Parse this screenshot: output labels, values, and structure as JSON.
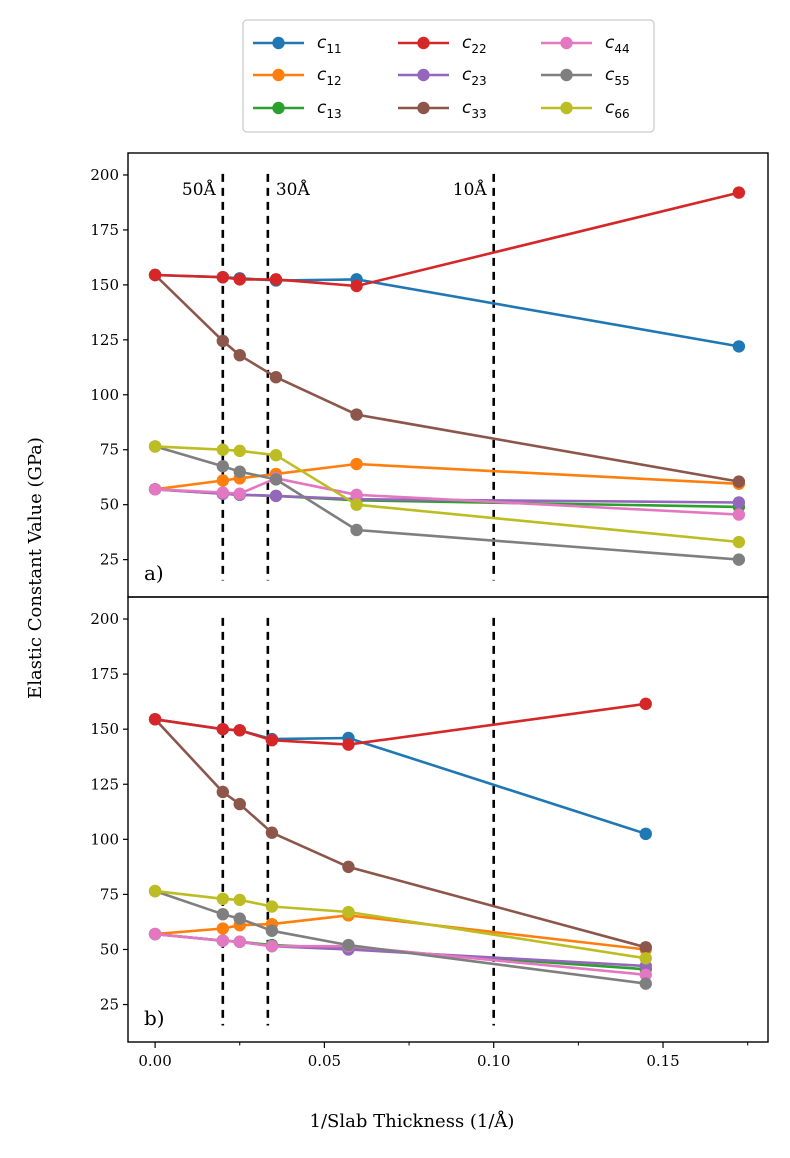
{
  "chart_data": {
    "type": "line",
    "xlabel": "1/Slab Thickness (1/Å)",
    "ylabel": "Elastic Constant Value (GPa)",
    "xlim": [
      -0.008,
      0.181
    ],
    "ylim": [
      8,
      210
    ],
    "xticks": [
      0.0,
      0.05,
      0.1,
      0.15
    ],
    "xtick_labels": [
      "0.00",
      "0.05",
      "0.10",
      "0.15"
    ],
    "yticks": [
      25,
      50,
      75,
      100,
      125,
      150,
      175,
      200
    ],
    "ytick_labels": [
      "25",
      "50",
      "75",
      "100",
      "125",
      "150",
      "175",
      "200"
    ],
    "legend": {
      "placement": "top-center",
      "entries": [
        {
          "id": "c11",
          "base": "c",
          "sub": "11",
          "color": "#1f77b4"
        },
        {
          "id": "c12",
          "base": "c",
          "sub": "12",
          "color": "#ff7f0e"
        },
        {
          "id": "c13",
          "base": "c",
          "sub": "13",
          "color": "#2ca02c"
        },
        {
          "id": "c22",
          "base": "c",
          "sub": "22",
          "color": "#d62728"
        },
        {
          "id": "c23",
          "base": "c",
          "sub": "23",
          "color": "#9467bd"
        },
        {
          "id": "c33",
          "base": "c",
          "sub": "33",
          "color": "#8c564b"
        },
        {
          "id": "c44",
          "base": "c",
          "sub": "44",
          "color": "#e377c2"
        },
        {
          "id": "c55",
          "base": "c",
          "sub": "55",
          "color": "#7f7f7f"
        },
        {
          "id": "c66",
          "base": "c",
          "sub": "66",
          "color": "#bcbd22"
        }
      ]
    },
    "panels": [
      {
        "label": "a)",
        "vlines": [
          {
            "x": 0.02,
            "label": "50Å"
          },
          {
            "x": 0.0333,
            "label": "30Å"
          },
          {
            "x": 0.1,
            "label": "10Å"
          }
        ],
        "series": [
          {
            "id": "c11",
            "x": [
              0,
              0.02,
              0.025,
              0.0357,
              0.0595,
              0.1724
            ],
            "y": [
              154.5,
              153.5,
              153,
              152,
              152.5,
              122
            ]
          },
          {
            "id": "c22",
            "x": [
              0,
              0.02,
              0.025,
              0.0357,
              0.0595,
              0.1724
            ],
            "y": [
              154.5,
              153.5,
              152.5,
              152.5,
              149.5,
              192
            ]
          },
          {
            "id": "c33",
            "x": [
              0,
              0.02,
              0.025,
              0.0357,
              0.0595,
              0.1724
            ],
            "y": [
              154.5,
              124.5,
              118,
              108,
              91,
              60.5
            ]
          },
          {
            "id": "c12",
            "x": [
              0,
              0.02,
              0.025,
              0.0357,
              0.0595,
              0.1724
            ],
            "y": [
              57,
              61,
              62,
              64,
              68.5,
              59.5
            ]
          },
          {
            "id": "c13",
            "x": [
              0,
              0.02,
              0.025,
              0.0357,
              0.0595,
              0.1724
            ],
            "y": [
              57,
              55,
              54.5,
              54,
              52,
              49
            ]
          },
          {
            "id": "c23",
            "x": [
              0,
              0.02,
              0.025,
              0.0357,
              0.0595,
              0.1724
            ],
            "y": [
              57,
              55,
              54.5,
              54,
              52.5,
              51
            ]
          },
          {
            "id": "c44",
            "x": [
              0,
              0.02,
              0.025,
              0.0357,
              0.0595,
              0.1724
            ],
            "y": [
              57,
              55.5,
              55,
              62,
              54.5,
              45.5
            ]
          },
          {
            "id": "c55",
            "x": [
              0,
              0.02,
              0.025,
              0.0357,
              0.0595,
              0.1724
            ],
            "y": [
              76.5,
              67.5,
              65,
              61.5,
              38.5,
              25
            ]
          },
          {
            "id": "c66",
            "x": [
              0,
              0.02,
              0.025,
              0.0357,
              0.0595,
              0.1724
            ],
            "y": [
              76.5,
              75,
              74.5,
              72.5,
              50,
              33
            ]
          }
        ]
      },
      {
        "label": "b)",
        "vlines": [
          {
            "x": 0.02,
            "label": ""
          },
          {
            "x": 0.0333,
            "label": ""
          },
          {
            "x": 0.1,
            "label": ""
          }
        ],
        "series": [
          {
            "id": "c11",
            "x": [
              0,
              0.02,
              0.025,
              0.0345,
              0.0571,
              0.1449
            ],
            "y": [
              154.5,
              150,
              149.5,
              145.5,
              146,
              102.5
            ]
          },
          {
            "id": "c22",
            "x": [
              0,
              0.02,
              0.025,
              0.0345,
              0.0571,
              0.1449
            ],
            "y": [
              154.5,
              150,
              149.5,
              145,
              143,
              161.5
            ]
          },
          {
            "id": "c33",
            "x": [
              0,
              0.02,
              0.025,
              0.0345,
              0.0571,
              0.1449
            ],
            "y": [
              154.5,
              121.5,
              116,
              103,
              87.5,
              51
            ]
          },
          {
            "id": "c12",
            "x": [
              0,
              0.02,
              0.025,
              0.0345,
              0.0571,
              0.1449
            ],
            "y": [
              57,
              59.5,
              61,
              61.5,
              65.5,
              50
            ]
          },
          {
            "id": "c13",
            "x": [
              0,
              0.02,
              0.025,
              0.0345,
              0.0571,
              0.1449
            ],
            "y": [
              57,
              54,
              53.5,
              52,
              50.5,
              41
            ]
          },
          {
            "id": "c23",
            "x": [
              0,
              0.02,
              0.025,
              0.0345,
              0.0571,
              0.1449
            ],
            "y": [
              57,
              54,
              53.5,
              51.5,
              50,
              42.5
            ]
          },
          {
            "id": "c44",
            "x": [
              0,
              0.02,
              0.025,
              0.0345,
              0.0571,
              0.1449
            ],
            "y": [
              57,
              54,
              53.5,
              51.5,
              51.5,
              38.5
            ]
          },
          {
            "id": "c55",
            "x": [
              0,
              0.02,
              0.025,
              0.0345,
              0.0571,
              0.1449
            ],
            "y": [
              76.5,
              66,
              64,
              58.5,
              52,
              34.5
            ]
          },
          {
            "id": "c66",
            "x": [
              0,
              0.02,
              0.025,
              0.0345,
              0.0571,
              0.1449
            ],
            "y": [
              76.5,
              73,
              72.5,
              69.5,
              67,
              46
            ]
          }
        ]
      }
    ]
  }
}
